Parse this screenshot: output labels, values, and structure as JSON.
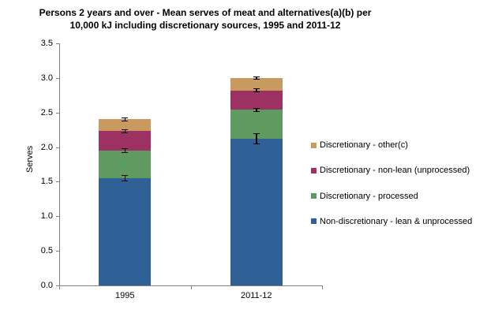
{
  "title": {
    "line1": "Persons 2 years and over - Mean serves of meat and alternatives(a)(b) per",
    "line2": "10,000 kJ including discretionary sources, 1995 and 2011-12"
  },
  "chart_data": {
    "type": "bar",
    "stacked": true,
    "title": "Persons 2 years and over - Mean serves of meat and alternatives(a)(b) per 10,000 kJ including discretionary sources, 1995 and 2011-12",
    "categories": [
      "1995",
      "2011-12"
    ],
    "series": [
      {
        "name": "Non-discretionary - lean & unprocessed",
        "color": "#2F6196",
        "values": [
          1.55,
          2.12
        ]
      },
      {
        "name": "Discretionary - processed",
        "color": "#5F9A60",
        "values": [
          0.4,
          0.42
        ]
      },
      {
        "name": "Discretionary - non-lean (unprocessed)",
        "color": "#9C3162",
        "values": [
          0.28,
          0.28
        ]
      },
      {
        "name": "Discretionary - other(c)",
        "color": "#C99A5E",
        "values": [
          0.17,
          0.18
        ]
      }
    ],
    "totals": [
      2.4,
      3.0
    ],
    "error_bars": [
      {
        "category": "1995",
        "values": [
          {
            "at": 1.55,
            "plusminus": 0.05
          },
          {
            "at": 1.95,
            "plusminus": 0.03
          },
          {
            "at": 2.23,
            "plusminus": 0.03
          },
          {
            "at": 2.4,
            "plusminus": 0.03
          }
        ]
      },
      {
        "category": "2011-12",
        "values": [
          {
            "at": 2.12,
            "plusminus": 0.08
          },
          {
            "at": 2.54,
            "plusminus": 0.03
          },
          {
            "at": 2.82,
            "plusminus": 0.03
          },
          {
            "at": 3.0,
            "plusminus": 0.025
          }
        ]
      }
    ],
    "xlabel": "",
    "ylabel": "Serves",
    "ylim": [
      0,
      3.5
    ],
    "ytick_step": 0.5,
    "ytick_labels": [
      "0.0",
      "0.5",
      "1.0",
      "1.5",
      "2.0",
      "2.5",
      "3.0",
      "3.5"
    ],
    "grid": false,
    "legend": {
      "position": "right",
      "entries": [
        "Discretionary - other(c)",
        "Discretionary - non-lean (unprocessed)",
        "Discretionary - processed",
        "Non-discretionary - lean & unprocessed"
      ]
    },
    "axis_color": "#808080",
    "error_bar_color": "#000000"
  }
}
